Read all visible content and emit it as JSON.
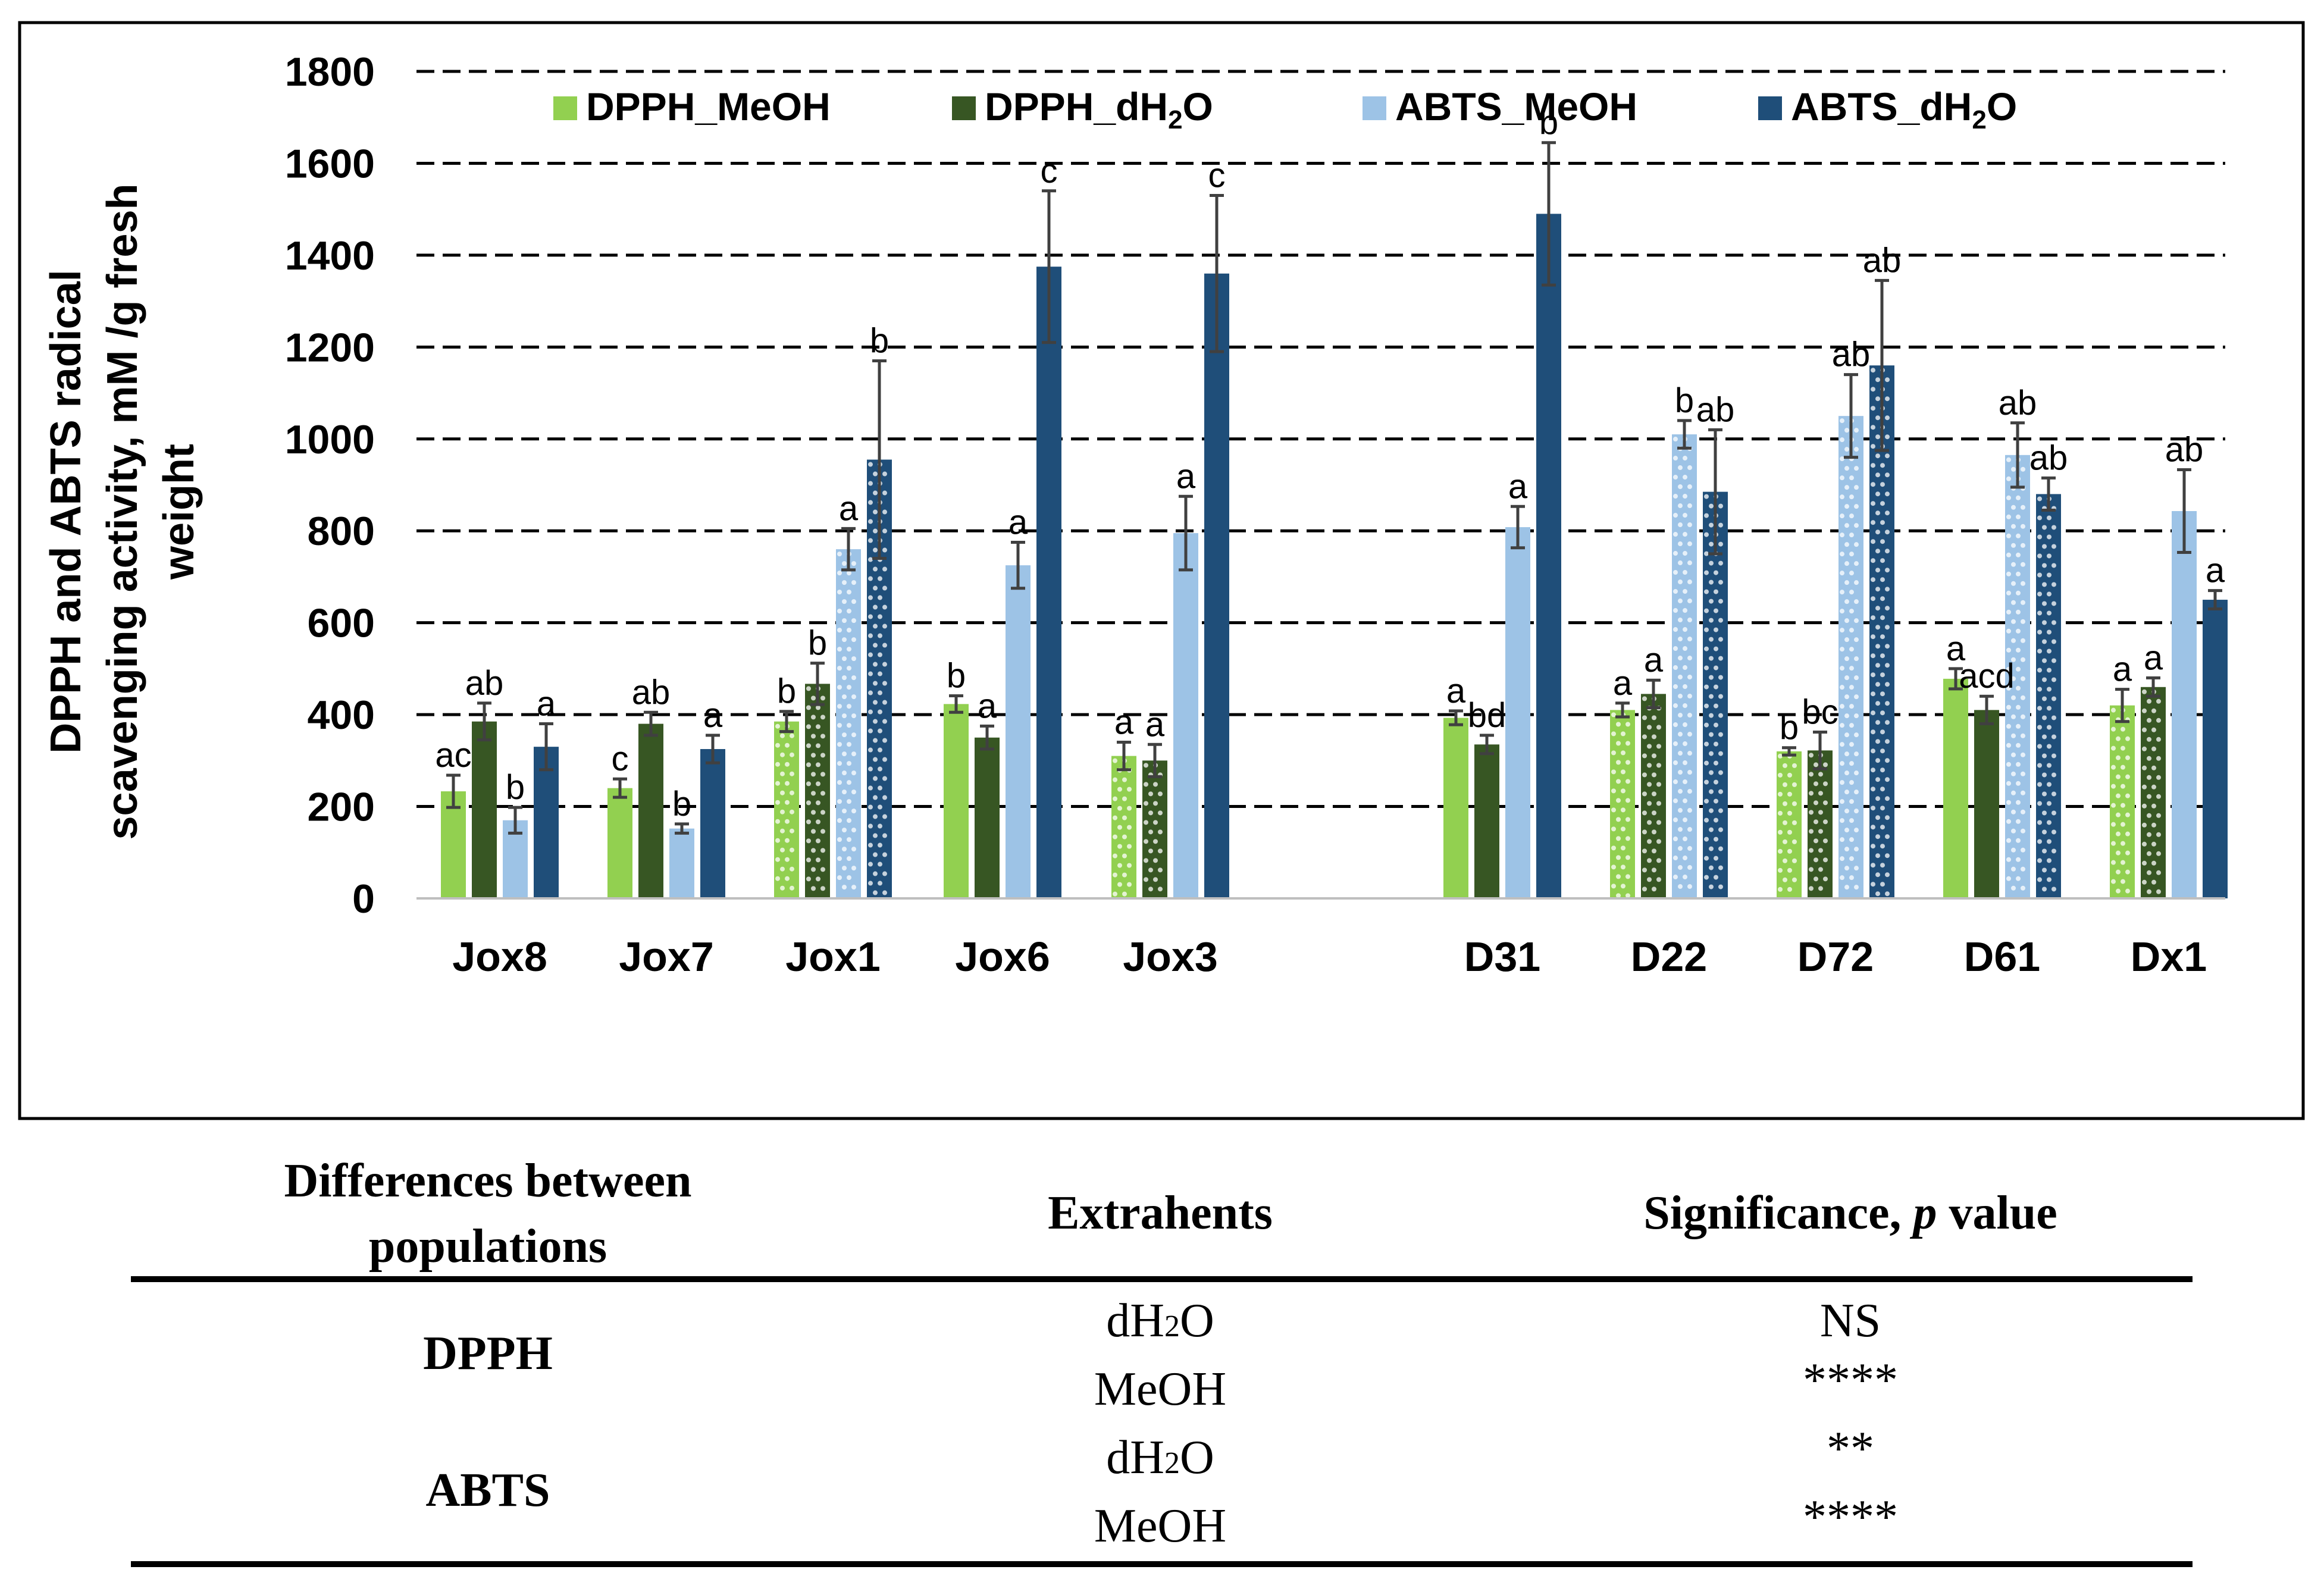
{
  "chart_data": {
    "type": "bar",
    "ylabel_lines": [
      "DPPH and ABTS radical",
      "scavenging activity, mM /g fresh",
      "weight"
    ],
    "ylim": [
      0,
      1800
    ],
    "yticks": [
      "0",
      "200",
      "400",
      "600",
      "800",
      "1000",
      "1200",
      "1400",
      "1600",
      "1800"
    ],
    "grid": "dashed-horizontal",
    "legend": {
      "position": "top",
      "entries": [
        {
          "label": "DPPH_MeOH",
          "main": "DPPH_MeOH",
          "sub": "",
          "tail": ""
        },
        {
          "label": "DPPH_dH2O",
          "main": "DPPH_dH",
          "sub": "2",
          "tail": "O"
        },
        {
          "label": "ABTS_MeOH",
          "main": "ABTS_MeOH",
          "sub": "",
          "tail": ""
        },
        {
          "label": "ABTS_dH2O",
          "main": "ABTS_dH",
          "sub": "2",
          "tail": "O"
        }
      ]
    },
    "categories": [
      "Jox8",
      "Jox7",
      "Jox1",
      "Jox6",
      "Jox3",
      "D31",
      "D22",
      "D72",
      "D61",
      "Dx1"
    ],
    "series": [
      {
        "name": "DPPH_MeOH",
        "color": "#92d050",
        "values": [
          233,
          240,
          385,
          423,
          310,
          393,
          410,
          320,
          478,
          420
        ],
        "errors": [
          35,
          20,
          22,
          18,
          30,
          15,
          15,
          8,
          22,
          35
        ],
        "labels": [
          "ac",
          "c",
          "b",
          "b",
          "a",
          "a",
          "a",
          "b",
          "a",
          "a"
        ],
        "hatched": [
          false,
          false,
          true,
          false,
          true,
          false,
          true,
          true,
          false,
          true
        ]
      },
      {
        "name": "DPPH_dH2O",
        "color": "#375623",
        "values": [
          385,
          380,
          467,
          350,
          300,
          335,
          445,
          322,
          410,
          460
        ],
        "errors": [
          40,
          25,
          45,
          25,
          35,
          20,
          30,
          40,
          30,
          20
        ],
        "labels": [
          "ab",
          "ab",
          "b",
          "a",
          "a",
          "bd",
          "a",
          "bc",
          "acd",
          "a"
        ],
        "hatched": [
          false,
          false,
          true,
          false,
          true,
          false,
          true,
          true,
          false,
          true
        ]
      },
      {
        "name": "ABTS_MeOH",
        "color": "#9dc3e6",
        "values": [
          170,
          152,
          760,
          725,
          795,
          808,
          1010,
          1050,
          965,
          843
        ],
        "errors": [
          28,
          10,
          45,
          50,
          80,
          45,
          30,
          90,
          70,
          90
        ],
        "labels": [
          "b",
          "b",
          "a",
          "a",
          "a",
          "a",
          "b",
          "ab",
          "ab",
          "ab"
        ],
        "hatched": [
          false,
          false,
          true,
          false,
          false,
          false,
          true,
          true,
          true,
          false
        ]
      },
      {
        "name": "ABTS_dH2O",
        "color": "#1f4e79",
        "values": [
          330,
          325,
          955,
          1375,
          1360,
          1490,
          885,
          1160,
          880,
          650
        ],
        "errors": [
          50,
          30,
          215,
          165,
          170,
          155,
          135,
          185,
          35,
          20
        ],
        "labels": [
          "a",
          "a",
          "b",
          "c",
          "c",
          "b",
          "ab",
          "ab",
          "ab",
          "a"
        ],
        "hatched": [
          false,
          false,
          true,
          false,
          false,
          false,
          true,
          true,
          true,
          false
        ]
      }
    ]
  },
  "table": {
    "headers": {
      "col1_line1": "Differences between",
      "col1_line2": "populations",
      "col2": "Extrahents",
      "col3_pre": "Significance, ",
      "col3_p": "p",
      "col3_post": " value"
    },
    "rows": [
      {
        "group": "DPPH",
        "ex1_main": "dH",
        "ex1_sub": "2",
        "ex1_tail": "O",
        "sig1": "NS",
        "ex2": "MeOH",
        "sig2": "****"
      },
      {
        "group": "ABTS",
        "ex1_main": "dH",
        "ex1_sub": "2",
        "ex1_tail": "O",
        "sig1": "**",
        "ex2": "MeOH",
        "sig2": "****"
      }
    ]
  }
}
